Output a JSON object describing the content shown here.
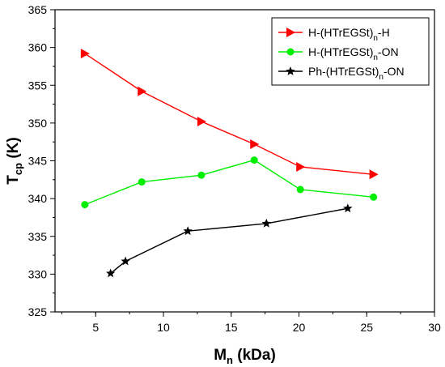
{
  "chart_data": {
    "type": "line",
    "xlabel": {
      "main": "M",
      "sub": "n",
      "rest": " (kDa)"
    },
    "ylabel": {
      "main": "T",
      "sub": "cp",
      "rest": " (K)"
    },
    "xlim": [
      2,
      30
    ],
    "ylim": [
      325,
      365
    ],
    "xticks": [
      5,
      10,
      15,
      20,
      25,
      30
    ],
    "yticks": [
      325,
      330,
      335,
      340,
      345,
      350,
      355,
      360,
      365
    ],
    "grid": false,
    "legend_position": "top-right",
    "series": [
      {
        "name": "H-(HTrEGSt)n-H",
        "legend": {
          "pre": "H-(HTrEGSt)",
          "sub": "n",
          "post": "-H"
        },
        "color": "#ff0000",
        "marker": "triangle-right",
        "x": [
          4.2,
          8.4,
          12.8,
          16.7,
          20.1,
          25.5
        ],
        "y": [
          359.2,
          354.2,
          350.2,
          347.2,
          344.2,
          343.2
        ]
      },
      {
        "name": "H-(HTrEGSt)n-ON",
        "legend": {
          "pre": "H-(HTrEGSt)",
          "sub": "n",
          "post": "-ON"
        },
        "color": "#00ee00",
        "marker": "circle",
        "x": [
          4.2,
          8.4,
          12.8,
          16.7,
          20.1,
          25.5
        ],
        "y": [
          339.2,
          342.2,
          343.1,
          345.1,
          341.2,
          340.2
        ]
      },
      {
        "name": "Ph-(HTrEGSt)n-ON",
        "legend": {
          "pre": "Ph-(HTrEGSt)",
          "sub": "n",
          "post": "-ON"
        },
        "color": "#000000",
        "marker": "star",
        "x": [
          6.1,
          7.2,
          11.8,
          17.6,
          23.6
        ],
        "y": [
          330.1,
          331.7,
          335.7,
          336.7,
          338.7
        ]
      }
    ]
  }
}
